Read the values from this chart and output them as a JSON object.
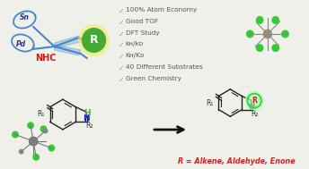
{
  "background_color": "#f0f0eb",
  "check_items": [
    "100% Atom Economy",
    "Good TOF",
    "DFT Study",
    "kʜ/kᴅ",
    "Kʜ/Kᴅ",
    "40 Different Substrates",
    "Green Chemistry"
  ],
  "r_label": "R = Alkene, Aldehyde, Enone",
  "arrow_color": "#111111",
  "r_circle_fill": "#44aa33",
  "r_circle_glow": "#eeee44",
  "r_text_color": "#cc2222",
  "n_color": "#1122cc",
  "h_color": "#33bb33",
  "nhc_color": "#dd1111",
  "sn_color": "#223399",
  "pd_color": "#223399",
  "scissors_color": "#4488cc",
  "check_color": "#999999",
  "text_color": "#555555",
  "bond_color": "#222222",
  "r2_color": "#333333",
  "r1_color": "#333333"
}
